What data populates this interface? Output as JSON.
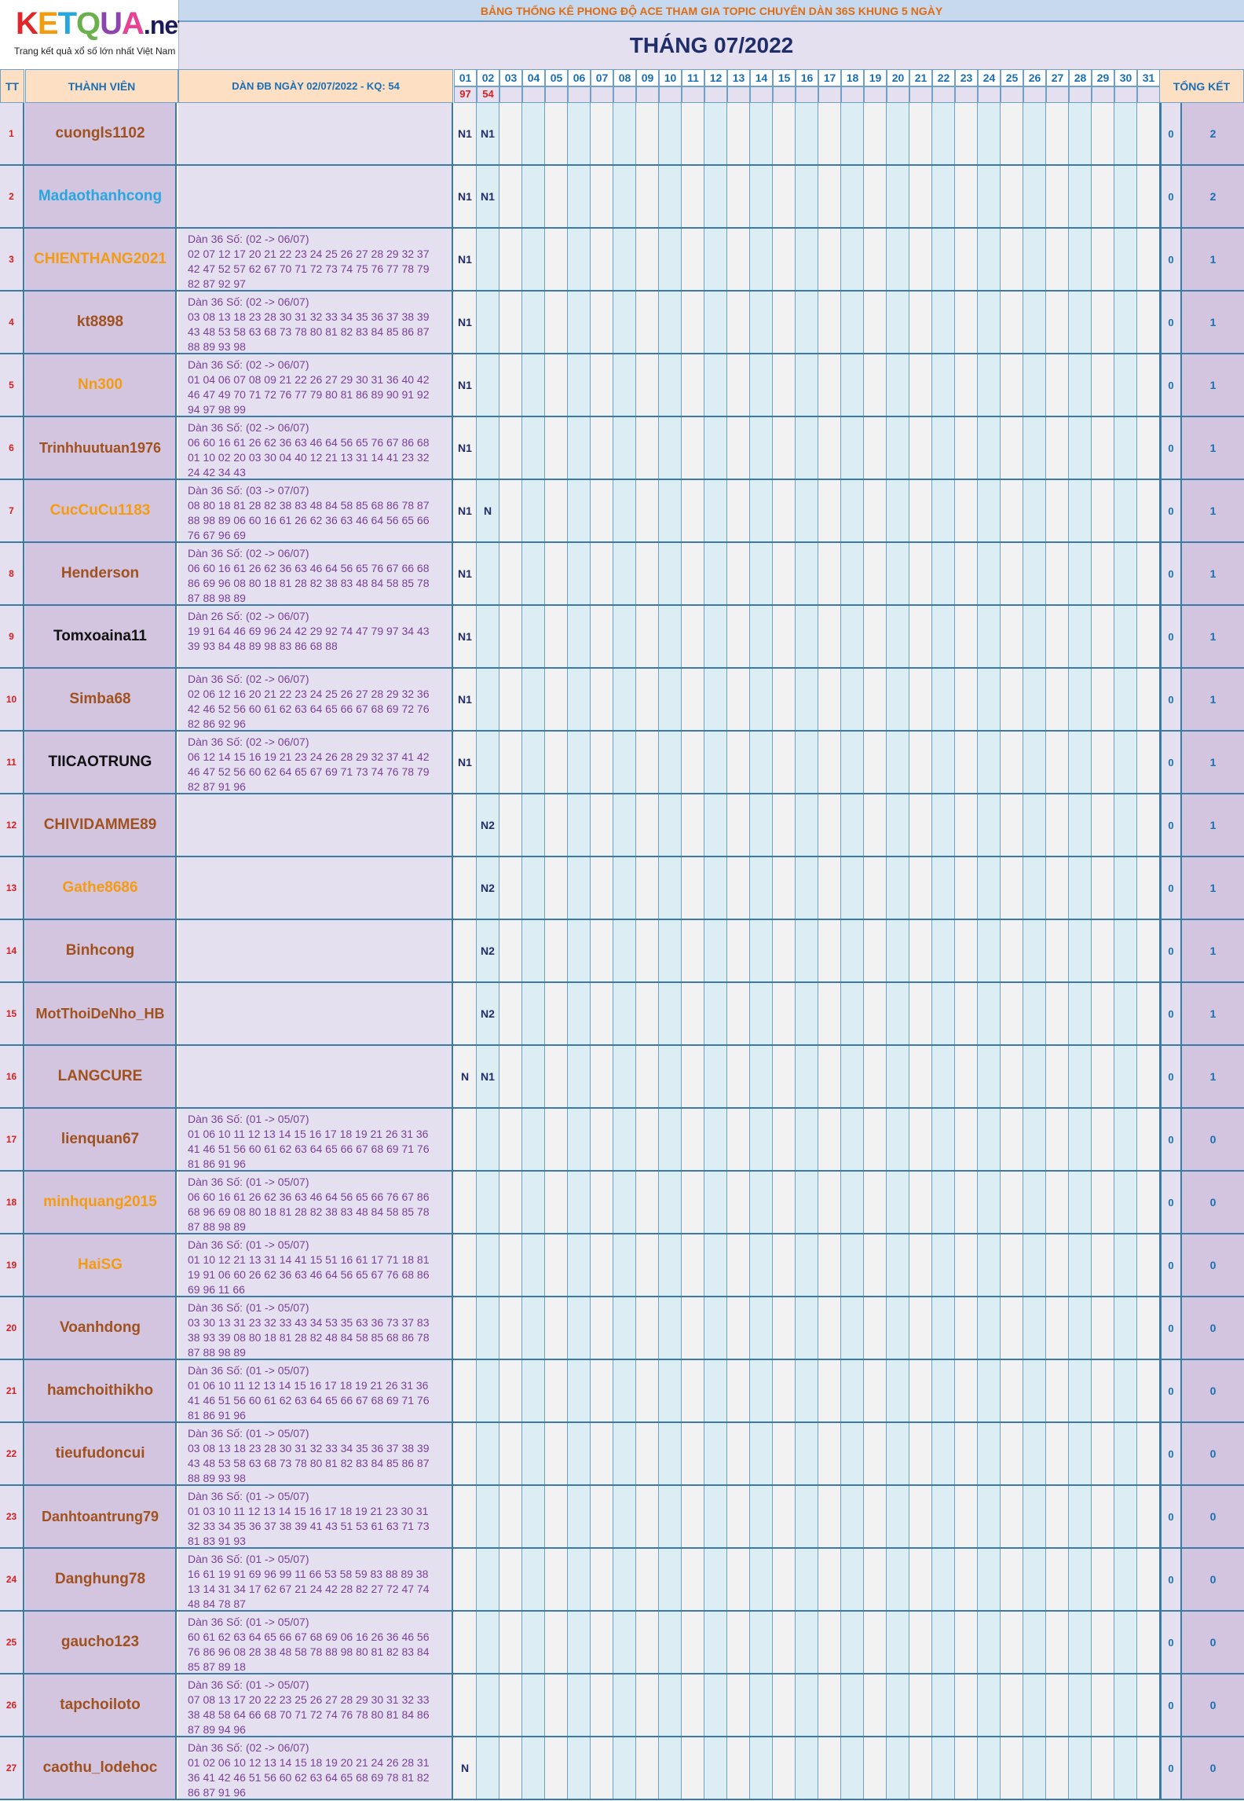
{
  "logo": {
    "brand": "KETQUA",
    "net": ".net",
    "tagline": "Trang kết quả xổ số lớn nhất Việt Nam"
  },
  "banner": "BẢNG THỐNG KÊ PHONG ĐỘ ACE THAM GIA TOPIC CHUYÊN DÀN 36S KHUNG 5 NGÀY",
  "month_title": "THÁNG 07/2022",
  "headers": {
    "tt": "TT",
    "member": "THÀNH VIÊN",
    "dan": "DÀN ĐB NGÀY 02/07/2022 - KQ: 54",
    "total": "TỔNG KẾT",
    "days": [
      "01",
      "02",
      "03",
      "04",
      "05",
      "06",
      "07",
      "08",
      "09",
      "10",
      "11",
      "12",
      "13",
      "14",
      "15",
      "16",
      "17",
      "18",
      "19",
      "20",
      "21",
      "22",
      "23",
      "24",
      "25",
      "26",
      "27",
      "28",
      "29",
      "30",
      "31"
    ],
    "results": [
      "97",
      "54"
    ]
  },
  "colors": {
    "brown": "#a0521e",
    "blue": "#27a7e0",
    "orange": "#f39c12",
    "black": "#111111",
    "tt_red": "#d62020",
    "header_blue": "#1a6fb5"
  },
  "rows": [
    {
      "tt": "1",
      "name": "cuongls1102",
      "color": "brown",
      "dan": [],
      "d1": "N1",
      "d2": "N1",
      "t0": "0",
      "t1": "2"
    },
    {
      "tt": "2",
      "name": "Madaothanhcong",
      "color": "blue",
      "dan": [],
      "d1": "N1",
      "d2": "N1",
      "t0": "0",
      "t1": "2"
    },
    {
      "tt": "3",
      "name": "CHIENTHANG2021",
      "color": "orange",
      "dan": [
        "Dàn 36 Số: (02 -> 06/07)",
        "02 07 12 17 20 21 22 23 24 25 26 27 28 29 32 37",
        "42 47 52 57 62 67 70 71 72 73 74 75 76 77 78 79",
        "82 87 92 97"
      ],
      "d1": "N1",
      "d2": "",
      "t0": "0",
      "t1": "1"
    },
    {
      "tt": "4",
      "name": "kt8898",
      "color": "brown",
      "dan": [
        "Dàn 36 Số: (02 -> 06/07)",
        "03 08 13 18 23 28 30 31 32 33 34 35 36 37 38 39",
        "43 48 53 58 63 68 73 78 80 81 82 83 84 85 86 87",
        "88 89 93 98"
      ],
      "d1": "N1",
      "d2": "",
      "t0": "0",
      "t1": "1"
    },
    {
      "tt": "5",
      "name": "Nn300",
      "color": "orange",
      "dan": [
        "Dàn 36 Số: (02 -> 06/07)",
        "01 04 06 07 08 09 21 22 26 27 29 30 31 36 40 42",
        "46 47 49 70 71 72 76 77 79 80 81 86 89 90 91 92",
        "94 97 98 99"
      ],
      "d1": "N1",
      "d2": "",
      "t0": "0",
      "t1": "1"
    },
    {
      "tt": "6",
      "name": "Trinhhuutuan1976",
      "color": "brown",
      "dan": [
        "Dàn 36 Số: (02 -> 06/07)",
        "06 60 16 61 26 62 36 63 46 64 56 65 76 67 86 68",
        "01 10 02 20 03 30 04 40 12 21 13 31 14 41 23 32",
        "24 42 34 43"
      ],
      "d1": "N1",
      "d2": "",
      "t0": "0",
      "t1": "1"
    },
    {
      "tt": "7",
      "name": "CucCuCu1183",
      "color": "orange",
      "dan": [
        "Dàn 36 Số: (03 -> 07/07)",
        "08 80 18 81 28 82 38 83 48 84 58 85 68 86 78 87",
        "88 98 89 06 60 16 61 26 62 36 63 46 64 56 65 66",
        "76 67 96 69"
      ],
      "d1": "N1",
      "d2": "N",
      "t0": "0",
      "t1": "1"
    },
    {
      "tt": "8",
      "name": "Henderson",
      "color": "brown",
      "dan": [
        "Dàn 36 Số: (02 -> 06/07)",
        "06 60 16 61 26 62 36 63 46 64 56 65 76 67 66 68",
        "86 69 96 08 80 18 81 28 82 38 83 48 84 58 85 78",
        "87 88 98 89"
      ],
      "d1": "N1",
      "d2": "",
      "t0": "0",
      "t1": "1"
    },
    {
      "tt": "9",
      "name": "Tomxoaina11",
      "color": "black",
      "dan": [
        "Dàn 26 Số: (02 -> 06/07)",
        "19 91 64 46 69 96 24 42 29 92 74 47 79 97 34 43",
        "39 93 84 48 89 98 83 86 68 88"
      ],
      "d1": "N1",
      "d2": "",
      "t0": "0",
      "t1": "1"
    },
    {
      "tt": "10",
      "name": "Simba68",
      "color": "brown",
      "dan": [
        "Dàn 36 Số: (02 -> 06/07)",
        "02 06 12 16 20 21 22 23 24 25 26 27 28 29 32 36",
        "42 46 52 56 60 61 62 63 64 65 66 67 68 69 72 76",
        "82 86 92 96"
      ],
      "d1": "N1",
      "d2": "",
      "t0": "0",
      "t1": "1"
    },
    {
      "tt": "11",
      "name": "TIICAOTRUNG",
      "color": "black",
      "dan": [
        "Dàn 36 Số: (02 -> 06/07)",
        "06 12 14 15 16 19 21 23 24 26 28 29 32 37 41 42",
        "46 47 52 56 60 62 64 65 67 69 71 73 74 76 78 79",
        "82 87 91 96"
      ],
      "d1": "N1",
      "d2": "",
      "t0": "0",
      "t1": "1"
    },
    {
      "tt": "12",
      "name": "CHIVIDAMME89",
      "color": "brown",
      "dan": [],
      "d1": "",
      "d2": "N2",
      "t0": "0",
      "t1": "1"
    },
    {
      "tt": "13",
      "name": "Gathe8686",
      "color": "orange",
      "dan": [],
      "d1": "",
      "d2": "N2",
      "t0": "0",
      "t1": "1"
    },
    {
      "tt": "14",
      "name": "Binhcong",
      "color": "brown",
      "dan": [],
      "d1": "",
      "d2": "N2",
      "t0": "0",
      "t1": "1"
    },
    {
      "tt": "15",
      "name": "MotThoiDeNho_HB",
      "color": "brown",
      "dan": [],
      "d1": "",
      "d2": "N2",
      "t0": "0",
      "t1": "1"
    },
    {
      "tt": "16",
      "name": "LANGCURE",
      "color": "brown",
      "dan": [],
      "d1": "N",
      "d2": "N1",
      "t0": "0",
      "t1": "1"
    },
    {
      "tt": "17",
      "name": "lienquan67",
      "color": "brown",
      "dan": [
        "Dàn 36 Số: (01 -> 05/07)",
        "01 06 10 11 12 13 14 15 16 17 18 19 21 26 31 36",
        "41 46 51 56 60 61 62 63 64 65 66 67 68 69 71 76",
        "81 86 91 96"
      ],
      "d1": "",
      "d2": "",
      "t0": "0",
      "t1": "0"
    },
    {
      "tt": "18",
      "name": "minhquang2015",
      "color": "orange",
      "dan": [
        "Dàn 36 Số: (01 -> 05/07)",
        "06 60 16 61 26 62 36 63 46 64 56 65 66 76 67 86",
        "68 96 69 08 80 18 81 28 82 38 83 48 84 58 85 78",
        "87 88 98 89"
      ],
      "d1": "",
      "d2": "",
      "t0": "0",
      "t1": "0"
    },
    {
      "tt": "19",
      "name": "HaiSG",
      "color": "orange",
      "dan": [
        "Dàn 36 Số: (01 -> 05/07)",
        "01 10 12 21 13 31 14 41 15 51 16 61 17 71 18 81",
        "19 91 06 60 26 62 36 63 46 64 56 65 67 76 68 86",
        "69 96 11 66"
      ],
      "d1": "",
      "d2": "",
      "t0": "0",
      "t1": "0"
    },
    {
      "tt": "20",
      "name": "Voanhdong",
      "color": "brown",
      "dan": [
        "Dàn 36 Số: (01 -> 05/07)",
        "03 30 13 31 23 32 33 43 34 53 35 63 36 73 37 83",
        "38 93 39 08 80 18 81 28 82 48 84 58 85 68 86 78",
        "87 88 98 89"
      ],
      "d1": "",
      "d2": "",
      "t0": "0",
      "t1": "0"
    },
    {
      "tt": "21",
      "name": "hamchoithikho",
      "color": "brown",
      "dan": [
        "Dàn 36 Số: (01 -> 05/07)",
        "01 06 10 11 12 13 14 15 16 17 18 19 21 26 31 36",
        "41 46 51 56 60 61 62 63 64 65 66 67 68 69 71 76",
        "81 86 91 96"
      ],
      "d1": "",
      "d2": "",
      "t0": "0",
      "t1": "0"
    },
    {
      "tt": "22",
      "name": "tieufudoncui",
      "color": "brown",
      "dan": [
        "Dàn 36 Số: (01 -> 05/07)",
        "03 08 13 18 23 28 30 31 32 33 34 35 36 37 38 39",
        "43 48 53 58 63 68 73 78 80 81 82 83 84 85 86 87",
        "88 89 93 98"
      ],
      "d1": "",
      "d2": "",
      "t0": "0",
      "t1": "0"
    },
    {
      "tt": "23",
      "name": "Danhtoantrung79",
      "color": "brown",
      "dan": [
        "Dàn 36 Số: (01 -> 05/07)",
        "01 03 10 11 12 13 14 15 16 17 18 19 21 23 30 31",
        "32 33 34 35 36 37 38 39 41 43 51 53 61 63 71 73",
        "81 83 91 93"
      ],
      "d1": "",
      "d2": "",
      "t0": "0",
      "t1": "0"
    },
    {
      "tt": "24",
      "name": "Danghung78",
      "color": "brown",
      "dan": [
        "Dàn 36 Số: (01 -> 05/07)",
        "16 61 19 91 69 96 99 11 66 53 58 59 83 88 89 38",
        "13 14 31 34 17 62 67 21 24 42 28 82 27 72 47 74",
        "48 84 78 87"
      ],
      "d1": "",
      "d2": "",
      "t0": "0",
      "t1": "0"
    },
    {
      "tt": "25",
      "name": "gaucho123",
      "color": "brown",
      "dan": [
        "Dàn 36 Số: (01 -> 05/07)",
        "60 61 62 63 64 65 66 67 68 69 06 16 26 36 46 56",
        "76 86 96 08 28 38 48 58 78 88 98 80 81 82 83 84",
        "85 87 89 18"
      ],
      "d1": "",
      "d2": "",
      "t0": "0",
      "t1": "0"
    },
    {
      "tt": "26",
      "name": "tapchoiloto",
      "color": "brown",
      "dan": [
        "Dàn 36 Số: (01 -> 05/07)",
        "07 08 13 17 20 22 23 25 26 27 28 29 30 31 32 33",
        "38 48 58 64 66 68 70 71 72 74 76 78 80 81 84 86",
        "87 89 94 96"
      ],
      "d1": "",
      "d2": "",
      "t0": "0",
      "t1": "0"
    },
    {
      "tt": "27",
      "name": "caothu_lodehoc",
      "color": "brown",
      "dan": [
        "Dàn 36 Số: (02 -> 06/07)",
        "01 02 06 10 12 13 14 15 18 19 20 21 24 26 28 31",
        "36 41 42 46 51 56 60 62 63 64 65 68 69 78 81 82",
        "86 87 91 96"
      ],
      "d1": "N",
      "d2": "",
      "t0": "0",
      "t1": "0"
    }
  ]
}
